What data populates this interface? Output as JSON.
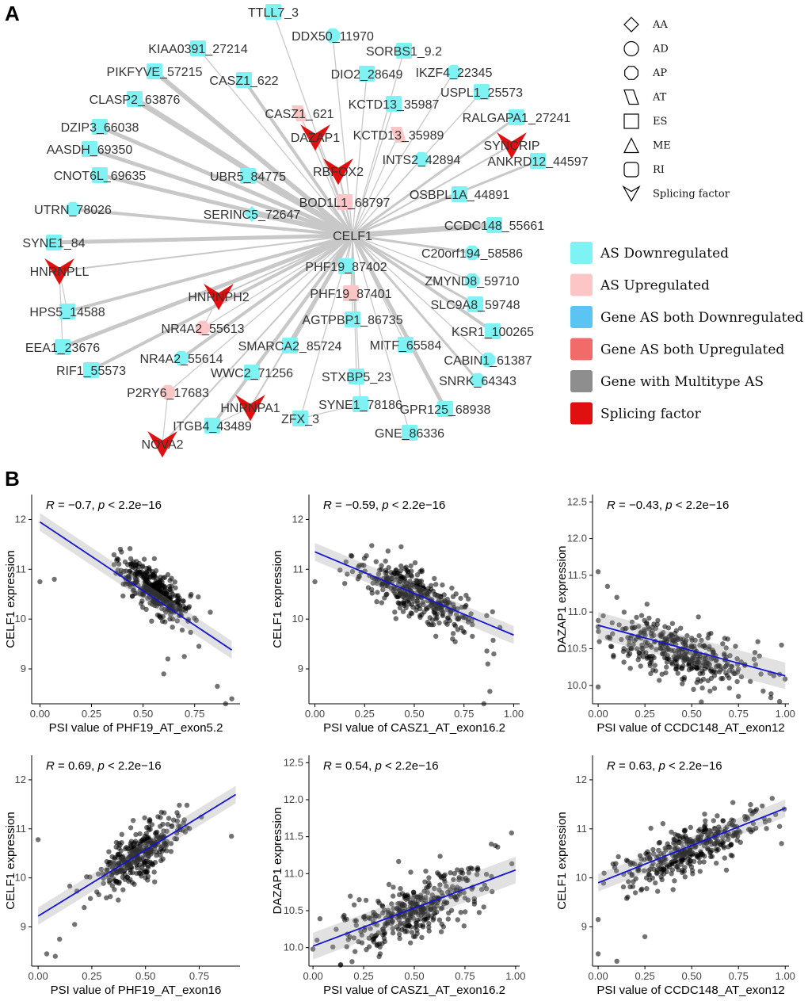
{
  "panels": {
    "a": "A",
    "b": "B"
  },
  "network": {
    "center": "CELF1",
    "colors": {
      "as_down": "#7FF2F3",
      "as_up": "#FCC6C6",
      "both_down": "#5BC4F2",
      "both_up": "#F26B6B",
      "multitype": "#8E8E8E",
      "splicing_factor": "#E01010",
      "edge": "#C8C8C8"
    },
    "nodes": [
      {
        "label": "TTLL7_3",
        "shape": "ES",
        "status": "down"
      },
      {
        "label": "DDX50_11970",
        "shape": "AP",
        "status": "down"
      },
      {
        "label": "KIAA0391_27214",
        "shape": "ES",
        "status": "down"
      },
      {
        "label": "SORBS1_9.2",
        "shape": "ES",
        "status": "down"
      },
      {
        "label": "PIKFYVE_57215",
        "shape": "ES",
        "status": "down"
      },
      {
        "label": "DIO2_28649",
        "shape": "ES",
        "status": "down"
      },
      {
        "label": "IKZF4_22345",
        "shape": "AP",
        "status": "down"
      },
      {
        "label": "CASZ1_622",
        "shape": "ES",
        "status": "down"
      },
      {
        "label": "USPL1_25573",
        "shape": "ES",
        "status": "down"
      },
      {
        "label": "CLASP2_63876",
        "shape": "ES",
        "status": "down"
      },
      {
        "label": "CASZ1_621",
        "shape": "AT",
        "status": "up"
      },
      {
        "label": "KCTD13_35987",
        "shape": "ES",
        "status": "down"
      },
      {
        "label": "RALGAPA1_27241",
        "shape": "ES",
        "status": "down"
      },
      {
        "label": "DZIP3_66038",
        "shape": "ES",
        "status": "down"
      },
      {
        "label": "KCTD13_35989",
        "shape": "AT",
        "status": "up"
      },
      {
        "label": "AASDH_69350",
        "shape": "ES",
        "status": "down"
      },
      {
        "label": "INTS2_42894",
        "shape": "AP",
        "status": "down"
      },
      {
        "label": "ANKRD12_44597",
        "shape": "ES",
        "status": "down"
      },
      {
        "label": "CNOT6L_69635",
        "shape": "ES",
        "status": "down"
      },
      {
        "label": "UBR5_84775",
        "shape": "ES",
        "status": "down"
      },
      {
        "label": "BOD1L1_68797",
        "shape": "ES",
        "status": "up"
      },
      {
        "label": "OSBPL1A_44891",
        "shape": "ES",
        "status": "down"
      },
      {
        "label": "UTRN_78026",
        "shape": "AP",
        "status": "down"
      },
      {
        "label": "SERINC5_72647",
        "shape": "AA",
        "status": "down"
      },
      {
        "label": "CCDC148_55661",
        "shape": "ES",
        "status": "down"
      },
      {
        "label": "SYNE1_84",
        "shape": "ES",
        "status": "down"
      },
      {
        "label": "C20orf194_58586",
        "shape": "AP",
        "status": "down"
      },
      {
        "label": "PHF19_87402",
        "shape": "ES",
        "status": "down"
      },
      {
        "label": "ZMYND8_59710",
        "shape": "AP",
        "status": "down"
      },
      {
        "label": "PHF19_87401",
        "shape": "ES",
        "status": "up"
      },
      {
        "label": "SLC9A8_59748",
        "shape": "ES",
        "status": "down"
      },
      {
        "label": "HPS5_14588",
        "shape": "ES",
        "status": "down"
      },
      {
        "label": "NR4A2_55613",
        "shape": "AP",
        "status": "up"
      },
      {
        "label": "AGTPBP1_86735",
        "shape": "ES",
        "status": "down"
      },
      {
        "label": "KSR1_100265",
        "shape": "ES",
        "status": "down"
      },
      {
        "label": "EEA1_23676",
        "shape": "ES",
        "status": "down"
      },
      {
        "label": "SMARCA2_85724",
        "shape": "ES",
        "status": "down"
      },
      {
        "label": "MITF_65584",
        "shape": "ES",
        "status": "down"
      },
      {
        "label": "CABIN1_61387",
        "shape": "AP",
        "status": "down"
      },
      {
        "label": "NR4A2_55614",
        "shape": "AP",
        "status": "down"
      },
      {
        "label": "RIF1_55573",
        "shape": "ES",
        "status": "down"
      },
      {
        "label": "WWC2_71256",
        "shape": "ES",
        "status": "down"
      },
      {
        "label": "STXBP5_23",
        "shape": "ES",
        "status": "down"
      },
      {
        "label": "SNRK_64343",
        "shape": "AP",
        "status": "down"
      },
      {
        "label": "P2RY6_17683",
        "shape": "AP",
        "status": "up"
      },
      {
        "label": "SYNE1_78186",
        "shape": "ES",
        "status": "down"
      },
      {
        "label": "GPR125_68938",
        "shape": "ES",
        "status": "down"
      },
      {
        "label": "ZFX_3",
        "shape": "ES",
        "status": "down"
      },
      {
        "label": "ITGB4_43489",
        "shape": "ES",
        "status": "down"
      },
      {
        "label": "GNE_86336",
        "shape": "ES",
        "status": "down"
      }
    ],
    "splicing_factors": [
      "DAZAP1",
      "RBFOX2",
      "SYNCRIP",
      "HNRNPLL",
      "HNRNPH2",
      "HNRNPA1",
      "NOVA2"
    ],
    "shape_legend": [
      {
        "code": "AA",
        "label": "AA"
      },
      {
        "code": "AD",
        "label": "AD"
      },
      {
        "code": "AP",
        "label": "AP"
      },
      {
        "code": "AT",
        "label": "AT"
      },
      {
        "code": "ES",
        "label": "ES"
      },
      {
        "code": "ME",
        "label": "ME"
      },
      {
        "code": "RI",
        "label": "RI"
      },
      {
        "code": "SF",
        "label": "Splicing factor"
      }
    ],
    "color_legend": [
      {
        "key": "as_down",
        "label": "AS Downregulated"
      },
      {
        "key": "as_up",
        "label": "AS Upregulated"
      },
      {
        "key": "both_down",
        "label": "Gene AS both Downregulated"
      },
      {
        "key": "both_up",
        "label": "Gene AS both Upregulated"
      },
      {
        "key": "multitype",
        "label": "Gene with Multitype AS"
      },
      {
        "key": "splicing_factor",
        "label": "Splicing factor"
      }
    ]
  },
  "chart_data": [
    {
      "type": "scatter",
      "annotation": {
        "r": "−0.7",
        "p": "< 2.2e−16"
      },
      "xlabel": "PSI value of PHF19_AT_exon5.2",
      "ylabel": "CELF1 expression",
      "xlim": [
        -0.04,
        0.97
      ],
      "ylim": [
        8.3,
        12.5
      ],
      "xticks": [
        0,
        0.25,
        0.5,
        0.75
      ],
      "xtick_labels": [
        "0.00",
        "0.25",
        "0.50",
        "0.75"
      ],
      "yticks": [
        9,
        10,
        11,
        12
      ],
      "ytick_labels": [
        "9",
        "10",
        "11",
        "12"
      ],
      "fit": {
        "x": [
          0.0,
          0.93
        ],
        "y": [
          11.95,
          9.38
        ]
      },
      "cluster": {
        "x_mean": 0.55,
        "x_sd": 0.09,
        "y_mean": 10.6,
        "y_sd": 0.3,
        "n": 360
      },
      "outliers": [
        [
          0.0,
          10.75
        ],
        [
          0.07,
          10.8
        ],
        [
          0.86,
          8.65
        ],
        [
          0.9,
          8.3
        ],
        [
          0.93,
          8.4
        ],
        [
          0.6,
          8.9
        ],
        [
          0.62,
          9.2
        ],
        [
          0.7,
          9.25
        ]
      ]
    },
    {
      "type": "scatter",
      "annotation": {
        "r": "−0.59",
        "p": "< 2.2e−16"
      },
      "xlabel": "PSI value of CASZ1_AT_exon16.2",
      "ylabel": "CELF1 expression",
      "xlim": [
        -0.03,
        1.03
      ],
      "ylim": [
        8.3,
        12.5
      ],
      "xticks": [
        0,
        0.25,
        0.5,
        0.75,
        1.0
      ],
      "xtick_labels": [
        "0.00",
        "0.25",
        "0.50",
        "0.75",
        "1.00"
      ],
      "yticks": [
        9,
        10,
        11,
        12
      ],
      "ytick_labels": [
        "9",
        "10",
        "11",
        "12"
      ],
      "fit": {
        "x": [
          0.0,
          1.0
        ],
        "y": [
          11.35,
          9.68
        ]
      },
      "cluster": {
        "x_mean": 0.5,
        "x_sd": 0.15,
        "y_mean": 10.5,
        "y_sd": 0.32,
        "n": 360
      },
      "outliers": [
        [
          0.0,
          10.75
        ],
        [
          0.85,
          8.3
        ],
        [
          0.88,
          8.55
        ],
        [
          0.87,
          9.1
        ],
        [
          0.9,
          9.3
        ]
      ]
    },
    {
      "type": "scatter",
      "annotation": {
        "r": "−0.43",
        "p": "< 2.2e−16"
      },
      "xlabel": "PSI value of CCDC148_AT_exon12",
      "ylabel": "DAZAP1 expression",
      "xlim": [
        -0.03,
        1.02
      ],
      "ylim": [
        9.75,
        12.6
      ],
      "xticks": [
        0,
        0.25,
        0.5,
        0.75,
        1.0
      ],
      "xtick_labels": [
        "0.00",
        "0.25",
        "0.50",
        "0.75",
        "1.00"
      ],
      "yticks": [
        10,
        10.5,
        11,
        11.5,
        12,
        12.5
      ],
      "ytick_labels": [
        "10.0",
        "10.5",
        "11.0",
        "11.5",
        "12.0",
        "12.5"
      ],
      "fit": {
        "x": [
          0.0,
          1.0
        ],
        "y": [
          10.82,
          10.13
        ]
      },
      "cluster": {
        "x_mean": 0.42,
        "x_sd": 0.2,
        "y_mean": 10.45,
        "y_sd": 0.25,
        "n": 380
      },
      "outliers": [
        [
          0.0,
          11.55
        ],
        [
          0.0,
          9.98
        ],
        [
          0.05,
          11.35
        ],
        [
          0.98,
          10.55
        ],
        [
          0.97,
          10.15
        ],
        [
          0.75,
          9.85
        ],
        [
          0.1,
          11.2
        ]
      ]
    },
    {
      "type": "scatter",
      "annotation": {
        "r": "0.69",
        "p": "< 2.2e−16"
      },
      "xlabel": "PSI value of PHF19_AT_exon16",
      "ylabel": "CELF1 expression",
      "xlim": [
        -0.03,
        0.94
      ],
      "ylim": [
        8.2,
        12.5
      ],
      "xticks": [
        0,
        0.25,
        0.5,
        0.75
      ],
      "xtick_labels": [
        "0.00",
        "0.25",
        "0.50",
        "0.75"
      ],
      "yticks": [
        9,
        10,
        11,
        12
      ],
      "ytick_labels": [
        "9",
        "10",
        "11",
        "12"
      ],
      "fit": {
        "x": [
          0.0,
          0.92
        ],
        "y": [
          9.22,
          11.7
        ]
      },
      "cluster": {
        "x_mean": 0.47,
        "x_sd": 0.09,
        "y_mean": 10.5,
        "y_sd": 0.35,
        "n": 360
      },
      "outliers": [
        [
          0.0,
          10.78
        ],
        [
          0.04,
          8.45
        ],
        [
          0.08,
          8.4
        ],
        [
          0.1,
          8.75
        ],
        [
          0.17,
          9.05
        ],
        [
          0.9,
          10.85
        ]
      ]
    },
    {
      "type": "scatter",
      "annotation": {
        "r": "0.54",
        "p": "< 2.2e−16"
      },
      "xlabel": "PSI value of CASZ1_AT_exon16.2",
      "ylabel": "DAZAP1 expression",
      "xlim": [
        -0.02,
        1.02
      ],
      "ylim": [
        9.75,
        12.6
      ],
      "xticks": [
        0,
        0.25,
        0.5,
        0.75,
        1.0
      ],
      "xtick_labels": [
        "0.00",
        "0.25",
        "0.50",
        "0.75",
        "1.00"
      ],
      "yticks": [
        10,
        10.5,
        11,
        11.5,
        12,
        12.5
      ],
      "ytick_labels": [
        "10.0",
        "10.5",
        "11.0",
        "11.5",
        "12.0",
        "12.5"
      ],
      "fit": {
        "x": [
          0.0,
          1.0
        ],
        "y": [
          10.02,
          11.05
        ]
      },
      "cluster": {
        "x_mean": 0.48,
        "x_sd": 0.17,
        "y_mean": 10.5,
        "y_sd": 0.25,
        "n": 380
      },
      "outliers": [
        [
          0.0,
          9.98
        ],
        [
          0.98,
          11.55
        ],
        [
          0.88,
          11.4
        ],
        [
          0.9,
          11.38
        ],
        [
          0.02,
          10.1
        ]
      ]
    },
    {
      "type": "scatter",
      "annotation": {
        "r": "0.63",
        "p": "< 2.2e−16"
      },
      "xlabel": "PSI value of CCDC148_AT_exon12",
      "ylabel": "CELF1 expression",
      "xlim": [
        -0.03,
        1.02
      ],
      "ylim": [
        8.2,
        12.5
      ],
      "xticks": [
        0,
        0.25,
        0.5,
        0.75,
        1.0
      ],
      "xtick_labels": [
        "0.00",
        "0.25",
        "0.50",
        "0.75",
        "1.00"
      ],
      "yticks": [
        9,
        10,
        11,
        12
      ],
      "ytick_labels": [
        "9",
        "10",
        "11",
        "12"
      ],
      "fit": {
        "x": [
          0.0,
          1.0
        ],
        "y": [
          9.9,
          11.42
        ]
      },
      "cluster": {
        "x_mean": 0.5,
        "x_sd": 0.2,
        "y_mean": 10.6,
        "y_sd": 0.32,
        "n": 380
      },
      "outliers": [
        [
          0.0,
          8.45
        ],
        [
          0.0,
          9.15
        ],
        [
          0.1,
          8.3
        ],
        [
          0.25,
          8.8
        ],
        [
          0.98,
          10.7
        ],
        [
          0.97,
          11.05
        ]
      ]
    }
  ]
}
